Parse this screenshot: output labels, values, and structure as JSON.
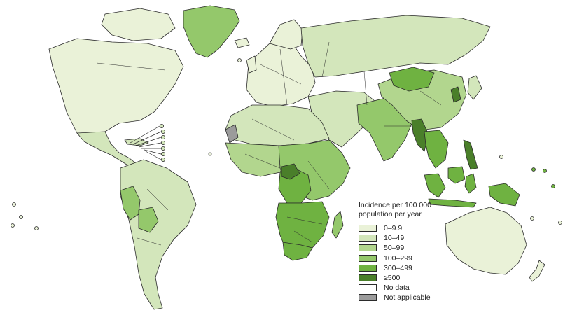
{
  "legend": {
    "title_line1": "Incidence per 100 000",
    "title_line2": "population per year",
    "items": [
      {
        "label": "0–9.9",
        "color": "#eaf2d8"
      },
      {
        "label": "10–49",
        "color": "#d3e6bb"
      },
      {
        "label": "50–99",
        "color": "#b2d68e"
      },
      {
        "label": "100–299",
        "color": "#94c86b"
      },
      {
        "label": "300–499",
        "color": "#6fb241"
      },
      {
        "label": "≥500",
        "color": "#4a7f2a"
      },
      {
        "label": "No data",
        "color": "#ffffff"
      },
      {
        "label": "Not applicable",
        "color": "#9b9b9b"
      }
    ]
  },
  "regions": [
    {
      "name": "greenland",
      "category": "100–299"
    },
    {
      "name": "north-america",
      "category": "0–9.9"
    },
    {
      "name": "mexico-central-america",
      "category": "10–49"
    },
    {
      "name": "south-america",
      "category": "10–49"
    },
    {
      "name": "peru",
      "category": "100–299"
    },
    {
      "name": "bolivia",
      "category": "100–299"
    },
    {
      "name": "europe",
      "category": "0–9.9"
    },
    {
      "name": "russia",
      "category": "10–49"
    },
    {
      "name": "north-africa",
      "category": "10–49"
    },
    {
      "name": "west-africa",
      "category": "50–99"
    },
    {
      "name": "central-africa",
      "category": "100–299"
    },
    {
      "name": "drc-region",
      "category": "300–499"
    },
    {
      "name": "southern-africa",
      "category": "300–499"
    },
    {
      "name": "south-africa",
      "category": "300–499"
    },
    {
      "name": "middle-east",
      "category": "10–49"
    },
    {
      "name": "south-asia",
      "category": "100–299"
    },
    {
      "name": "china",
      "category": "50–99"
    },
    {
      "name": "mongolia",
      "category": "300–499"
    },
    {
      "name": "southeast-asia",
      "category": "300–499"
    },
    {
      "name": "myanmar",
      "category": "≥500"
    },
    {
      "name": "indonesia",
      "category": "300–499"
    },
    {
      "name": "australia",
      "category": "0–9.9"
    },
    {
      "name": "western-sahara",
      "category": "Not applicable"
    }
  ]
}
